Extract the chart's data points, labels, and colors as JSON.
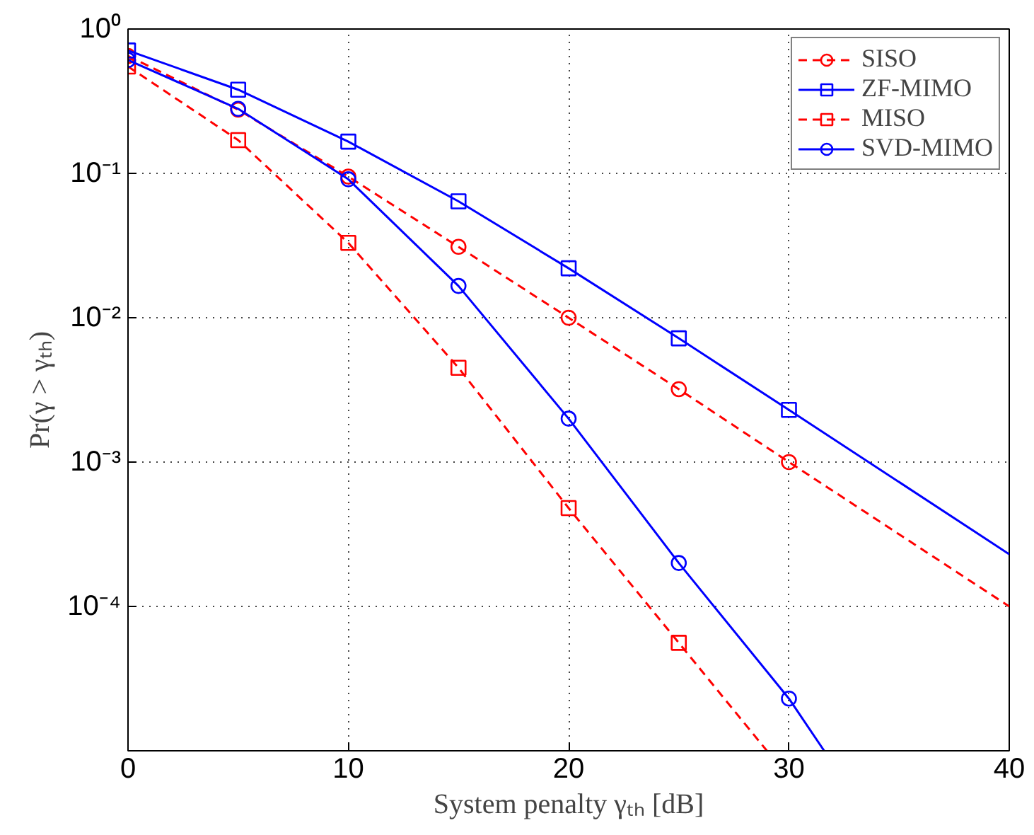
{
  "chart_data": {
    "type": "line",
    "xlabel": "System penalty γₜₕ [dB]",
    "ylabel": "Pr(γ > γₜₕ)",
    "log": "y",
    "grid": true,
    "legend": "top right",
    "xlim": [
      0,
      40
    ],
    "xticks": [
      0,
      10,
      20,
      30,
      40
    ],
    "ylim": [
      1e-05,
      1
    ],
    "yticks": [
      {
        "value": 1,
        "label": "10⁰"
      },
      {
        "value": 0.1,
        "label": "10⁻¹"
      },
      {
        "value": 0.01,
        "label": "10⁻²"
      },
      {
        "value": 0.001,
        "label": "10⁻³"
      },
      {
        "value": 0.0001,
        "label": "10⁻⁴"
      }
    ],
    "series": [
      {
        "name": "SISO",
        "color": "#ff0000",
        "line_style": "dashed",
        "marker": "circle",
        "x": [
          0,
          5,
          10,
          15,
          20,
          25,
          30,
          40
        ],
        "values": [
          0.65,
          0.276,
          0.095,
          0.031,
          0.01,
          0.0032,
          0.001,
          0.0001
        ]
      },
      {
        "name": "ZF-MIMO",
        "color": "#0000ff",
        "line_style": "solid",
        "marker": "square",
        "x": [
          0,
          5,
          10,
          15,
          20,
          25,
          30,
          40
        ],
        "values": [
          0.71,
          0.38,
          0.166,
          0.064,
          0.022,
          0.0072,
          0.0023,
          0.00023
        ]
      },
      {
        "name": "MISO",
        "color": "#ff0000",
        "line_style": "dashed",
        "marker": "square",
        "x": [
          0,
          5,
          10,
          15,
          20,
          25,
          29
        ],
        "values": [
          0.55,
          0.17,
          0.033,
          0.0045,
          0.00048,
          5.6e-05,
          1e-05
        ]
      },
      {
        "name": "SVD-MIMO",
        "color": "#0000ff",
        "line_style": "solid",
        "marker": "circle",
        "x": [
          0,
          5,
          10,
          15,
          20,
          25,
          30,
          31.6
        ],
        "values": [
          0.61,
          0.28,
          0.091,
          0.0166,
          0.002,
          0.0002,
          2.3e-05,
          1e-05
        ]
      }
    ]
  }
}
